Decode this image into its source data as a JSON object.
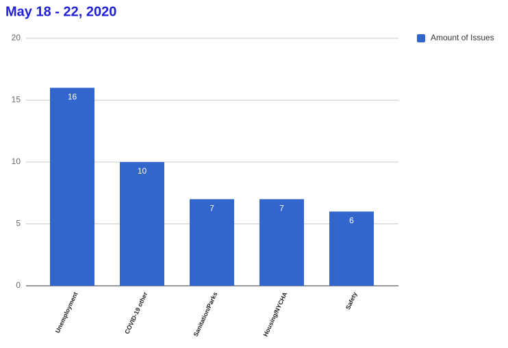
{
  "chart_data": {
    "type": "bar",
    "title": "May 18 - 22, 2020",
    "categories": [
      "Unemployment",
      "COVID-19 other",
      "Sanitation/Parks",
      "Housing/NYCHA",
      "Safety"
    ],
    "series": [
      {
        "name": "Amount of Issues",
        "color": "#3366cc",
        "values": [
          16,
          10,
          7,
          7,
          6
        ]
      }
    ],
    "ylim": [
      0,
      20
    ],
    "yticks": [
      0,
      5,
      10,
      15,
      20
    ],
    "grid": true,
    "legend": "right",
    "data_labels": true
  }
}
